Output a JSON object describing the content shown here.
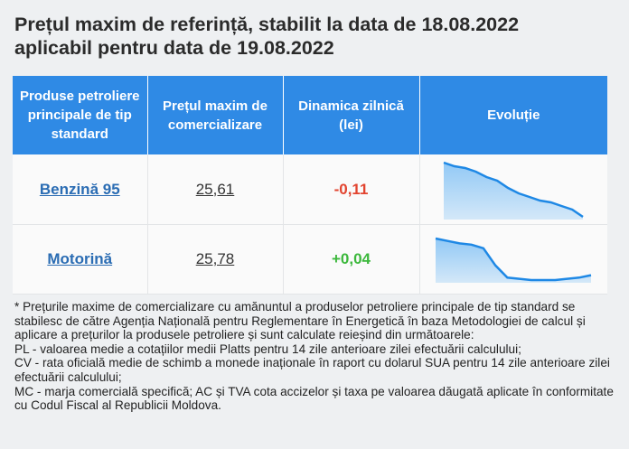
{
  "title_line1": "Prețul maxim de referință, stabilit la data de 18.08.2022",
  "title_line2": "aplicabil pentru data de 19.08.2022",
  "table": {
    "headers": [
      "Produse petroliere principale de tip standard",
      "Prețul maxim de comercializare",
      "Dinamica zilnică (lei)",
      "Evoluție"
    ],
    "rows": [
      {
        "product": "Benzină 95",
        "price": "25,61",
        "change": "-0,11",
        "trend": "down",
        "sparkline": [
          14,
          13.8,
          13.7,
          13.5,
          13.2,
          13.0,
          12.6,
          12.3,
          12.1,
          11.9,
          11.8,
          11.6,
          11.4,
          11.0
        ]
      },
      {
        "product": "Motorină",
        "price": "25,78",
        "change": "+0,04",
        "trend": "up",
        "sparkline": [
          15.0,
          14.8,
          14.6,
          14.5,
          14.2,
          12.8,
          11.8,
          11.7,
          11.6,
          11.6,
          11.6,
          11.7,
          11.8,
          12.0
        ]
      }
    ]
  },
  "notes": [
    "* Prețurile maxime de comercializare cu amănuntul a produselor petroliere principale de tip standard se stabilesc de către Agenția Națională pentru Reglementare în Energetică în baza Metodologiei de calcul și aplicare a prețurilor la produsele petroliere și sunt calculate reieșind din următoarele:",
    "PL - valoarea medie a cotațiilor medii Platts pentru 14 zile anterioare zilei efectuării calculului;",
    "CV - rata oficială medie de schimb a monede inaționale în raport cu dolarul SUA pentru 14 zile anterioare zilei efectuării calculului;",
    "MC - marja comercială specifică; AC și TVA cota accizelor și taxa pe valoarea dăugată aplicate în conformitate cu Codul Fiscal al Republicii Moldova."
  ],
  "colors": {
    "header_bg": "#2f8ae5",
    "negative": "#e2442f",
    "positive": "#3cb83c",
    "spark_line": "#1e88e5",
    "spark_fill": "#8cc6f5"
  }
}
